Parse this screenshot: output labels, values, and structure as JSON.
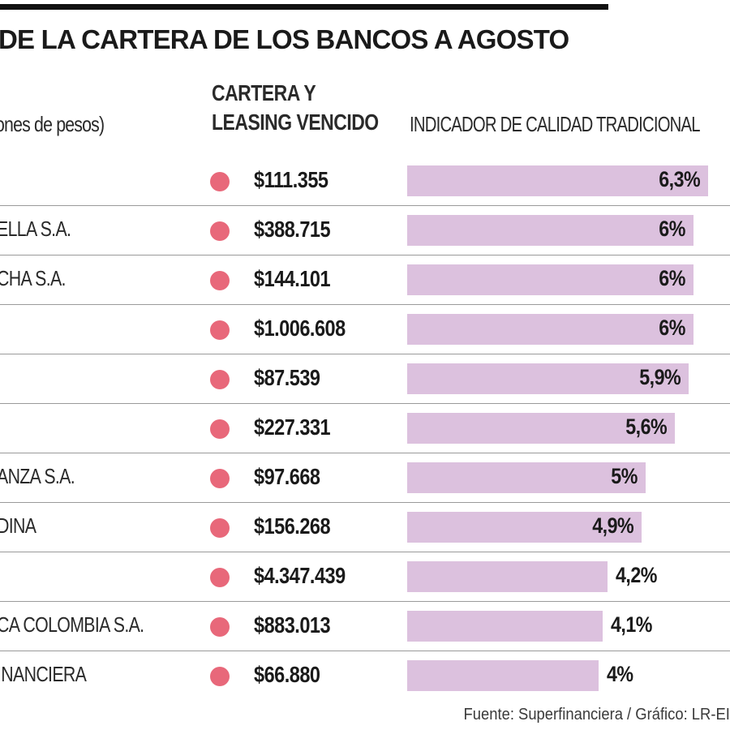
{
  "title": "DE LA CARTERA DE LOS BANCOS A AGOSTO",
  "column_headers": {
    "bank": "ones de pesos)",
    "amount_line1": "CARTERA Y",
    "amount_line2": "LEASING VENCIDO",
    "indicator": "INDICADOR DE CALIDAD TRADICIONAL"
  },
  "source": "Fuente: Superfinanciera / Gráfico: LR-EI",
  "colors": {
    "dot": "#e8687a",
    "bar": "#dcc1de",
    "rule": "#111111"
  },
  "chart_data": {
    "type": "bar",
    "orientation": "horizontal",
    "title": "DE LA CARTERA DE LOS BANCOS A AGOSTO",
    "categories": [
      "",
      "ELLA S.A.",
      "CHA S.A.",
      "",
      "",
      "",
      "ANZA S.A.",
      "DINA",
      "",
      "CA COLOMBIA S.A.",
      "INANCIERA"
    ],
    "amounts": [
      "$111.355",
      "$388.715",
      "$144.101",
      "$1.006.608",
      "$87.539",
      "$227.331",
      "$97.668",
      "$156.268",
      "$4.347.439",
      "$883.013",
      "$66.880"
    ],
    "values": [
      6.3,
      6.0,
      6.0,
      6.0,
      5.9,
      5.6,
      5.0,
      4.9,
      4.2,
      4.1,
      4.0
    ],
    "value_labels": [
      "6,3%",
      "6%",
      "6%",
      "6%",
      "5,9%",
      "5,6%",
      "5%",
      "4,9%",
      "4,2%",
      "4,1%",
      "4%"
    ],
    "xlim": [
      0,
      6.3
    ],
    "grid": false,
    "legend": "none"
  }
}
